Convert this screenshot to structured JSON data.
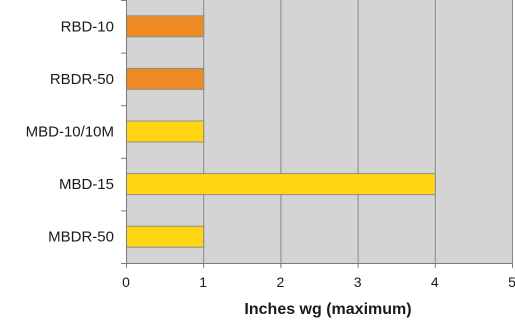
{
  "chart_data": {
    "type": "bar",
    "orientation": "horizontal",
    "categories": [
      "RBD-10",
      "RBDR-50",
      "MBD-10/10M",
      "MBD-15",
      "MBDR-50"
    ],
    "values": [
      1,
      1,
      1,
      4,
      1
    ],
    "bar_colors": [
      "#ED8A24",
      "#ED8A24",
      "#FFD514",
      "#FFD514",
      "#FFD514"
    ],
    "bar_outline_color": "#8C8C8C",
    "plot_background": "#D4D4D4",
    "grid": true,
    "xlim": [
      0,
      5
    ],
    "xticks": [
      "0",
      "1",
      "2",
      "3",
      "4",
      "5"
    ],
    "xlabel": "Inches wg (maximum)",
    "title": "",
    "ylabel": ""
  }
}
